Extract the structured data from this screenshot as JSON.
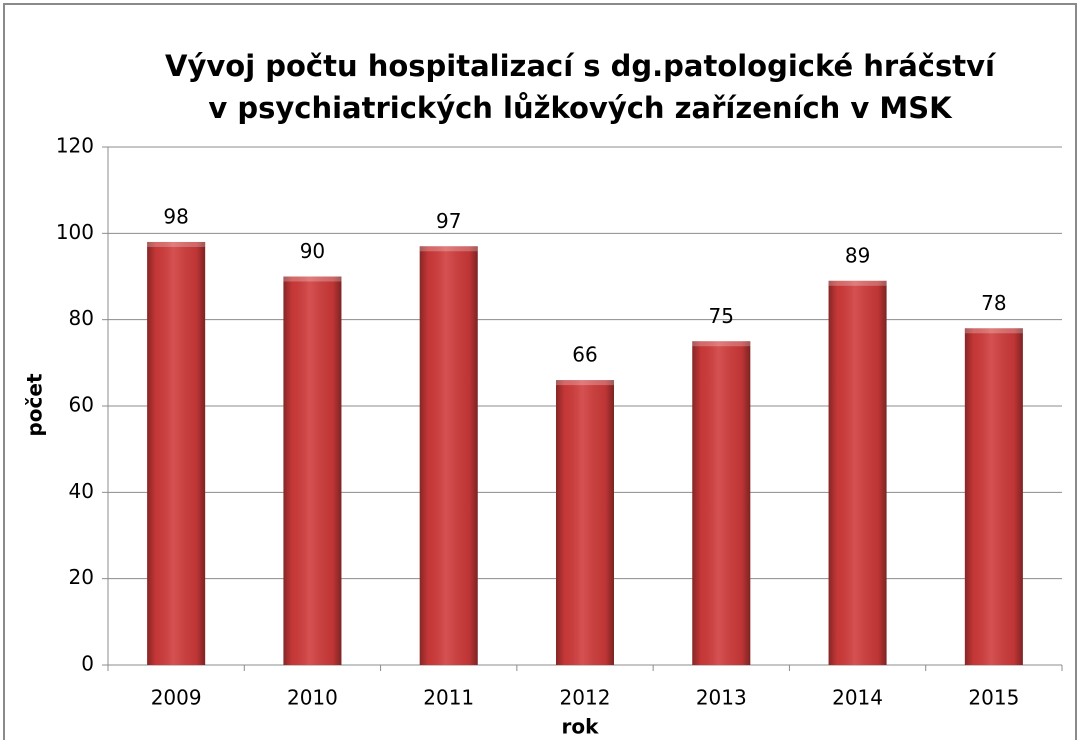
{
  "chart_data": {
    "type": "bar",
    "title": [
      "Vývoj počtu hospitalizací s dg.patologické hráčství",
      "v psychiatrických lůžkových zařízeních v MSK"
    ],
    "xlabel": "rok",
    "ylabel": "počet",
    "categories": [
      "2009",
      "2010",
      "2011",
      "2012",
      "2013",
      "2014",
      "2015"
    ],
    "values": [
      98,
      90,
      97,
      66,
      75,
      89,
      78
    ],
    "color": "#d03a3a",
    "ylim": [
      0,
      120
    ],
    "yticks": [
      0,
      20,
      40,
      60,
      80,
      100,
      120
    ],
    "grid": true
  }
}
